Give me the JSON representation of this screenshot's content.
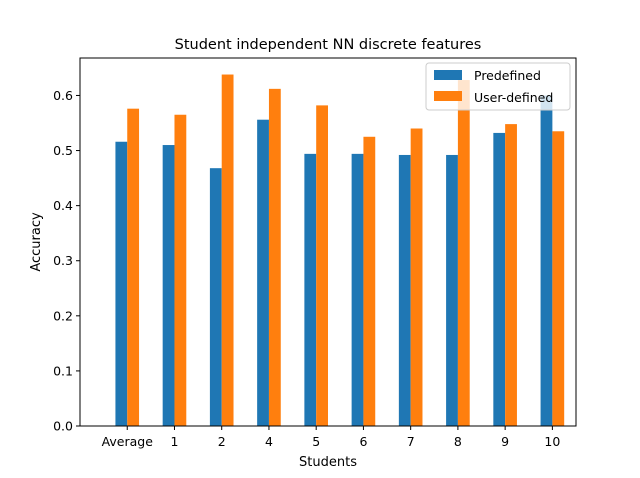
{
  "chart_data": {
    "type": "bar",
    "title": "Student independent NN discrete features",
    "xlabel": "Students",
    "ylabel": "Accuracy",
    "categories": [
      "Average",
      "1",
      "2",
      "4",
      "5",
      "6",
      "7",
      "8",
      "9",
      "10"
    ],
    "series": [
      {
        "name": "Predefined",
        "color": "#1f77b4",
        "values": [
          0.516,
          0.51,
          0.468,
          0.556,
          0.494,
          0.494,
          0.492,
          0.492,
          0.532,
          0.6
        ]
      },
      {
        "name": "User-defined",
        "color": "#ff7f0e",
        "values": [
          0.576,
          0.565,
          0.638,
          0.612,
          0.582,
          0.525,
          0.54,
          0.628,
          0.548,
          0.535
        ]
      }
    ],
    "ylim": [
      0,
      0.668
    ],
    "yticks": [
      "0.0",
      "0.1",
      "0.2",
      "0.3",
      "0.4",
      "0.5",
      "0.6"
    ],
    "grid": false,
    "legend_position": "top-right"
  }
}
